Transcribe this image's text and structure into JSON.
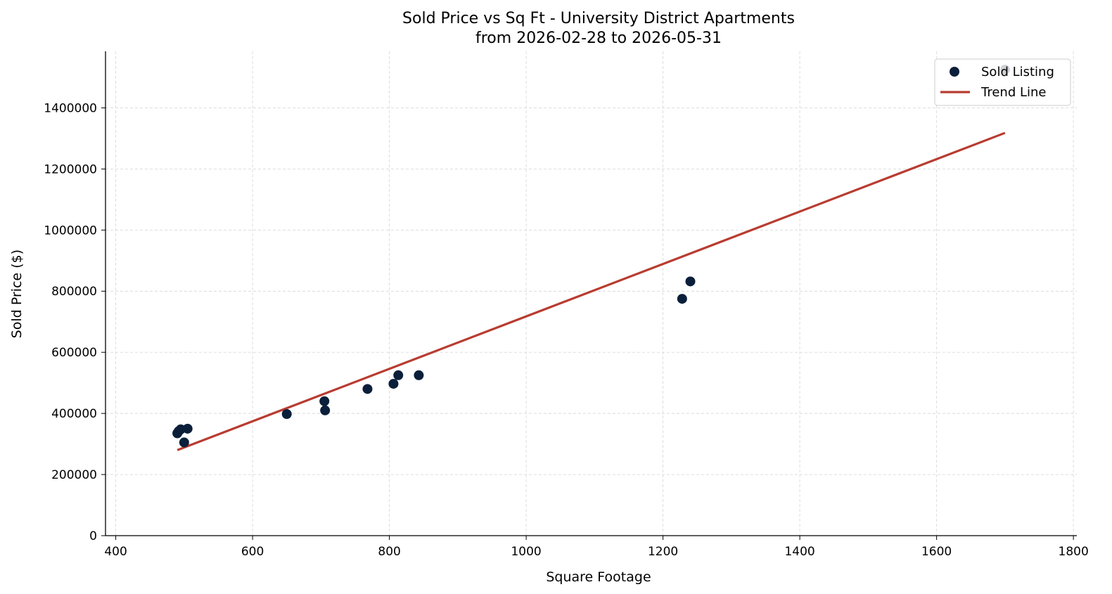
{
  "chart_data": {
    "type": "scatter",
    "title": "Sold Price vs Sq Ft - University District Apartments",
    "subtitle": "from 2026-02-28 to 2026-05-31",
    "xlabel": "Square Footage",
    "ylabel": "Sold Price ($)",
    "xlim": [
      385,
      1805
    ],
    "ylim": [
      0,
      1585000
    ],
    "x_ticks": [
      "400",
      "600",
      "800",
      "1000",
      "1200",
      "1400",
      "1600",
      "1800"
    ],
    "y_ticks": [
      "0",
      "200000",
      "400000",
      "600000",
      "800000",
      "1000000",
      "1200000",
      "1400000"
    ],
    "grid": true,
    "legend_position": "top-right",
    "series": [
      {
        "name": "Sold Listing",
        "type": "scatter",
        "color": "#0b1f3a",
        "points": [
          {
            "x": 490,
            "y": 335000
          },
          {
            "x": 492,
            "y": 342000
          },
          {
            "x": 495,
            "y": 348000
          },
          {
            "x": 500,
            "y": 305000
          },
          {
            "x": 505,
            "y": 350000
          },
          {
            "x": 650,
            "y": 398000
          },
          {
            "x": 705,
            "y": 440000
          },
          {
            "x": 706,
            "y": 410000
          },
          {
            "x": 768,
            "y": 480000
          },
          {
            "x": 806,
            "y": 497000
          },
          {
            "x": 813,
            "y": 525000
          },
          {
            "x": 843,
            "y": 525000
          },
          {
            "x": 1228,
            "y": 775000
          },
          {
            "x": 1240,
            "y": 832000
          },
          {
            "x": 1700,
            "y": 1525000
          }
        ]
      },
      {
        "name": "Trend Line",
        "type": "line",
        "color": "#b83c30",
        "points": [
          {
            "x": 490,
            "y": 280000
          },
          {
            "x": 1700,
            "y": 1318000
          }
        ]
      }
    ]
  }
}
